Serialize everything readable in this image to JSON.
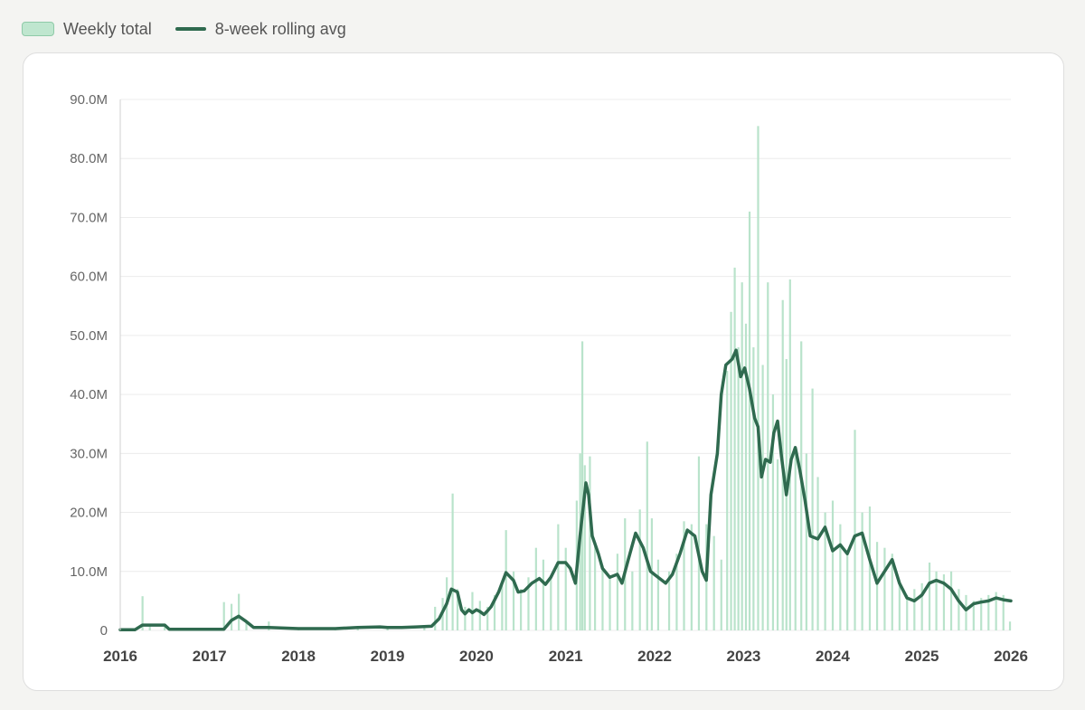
{
  "legend": {
    "bar_label": "Weekly total",
    "line_label": "8-week rolling avg"
  },
  "colors": {
    "bar": "#b9e3cb",
    "line": "#2f6a4f",
    "grid": "#ececec",
    "axis": "#d0d0d0"
  },
  "chart_data": {
    "type": "bar",
    "title": "",
    "xlabel": "",
    "ylabel": "",
    "ylim": [
      0,
      90000000
    ],
    "xlim": [
      "2016-01-01",
      "2026-01-01"
    ],
    "grid": true,
    "legend_position": "top-left",
    "y_ticks": [
      {
        "value": 0,
        "label": "0"
      },
      {
        "value": 10000000,
        "label": "10.0M"
      },
      {
        "value": 20000000,
        "label": "20.0M"
      },
      {
        "value": 30000000,
        "label": "30.0M"
      },
      {
        "value": 40000000,
        "label": "40.0M"
      },
      {
        "value": 50000000,
        "label": "50.0M"
      },
      {
        "value": 60000000,
        "label": "60.0M"
      },
      {
        "value": 70000000,
        "label": "70.0M"
      },
      {
        "value": 80000000,
        "label": "80.0M"
      },
      {
        "value": 90000000,
        "label": "90.0M"
      }
    ],
    "x_ticks": [
      {
        "date": "2016-01-01",
        "label": "2016"
      },
      {
        "date": "2017-01-01",
        "label": "2017"
      },
      {
        "date": "2018-01-01",
        "label": "2018"
      },
      {
        "date": "2019-01-01",
        "label": "2019"
      },
      {
        "date": "2020-01-01",
        "label": "2020"
      },
      {
        "date": "2021-01-01",
        "label": "2021"
      },
      {
        "date": "2022-01-01",
        "label": "2022"
      },
      {
        "date": "2023-01-01",
        "label": "2023"
      },
      {
        "date": "2024-01-01",
        "label": "2024"
      },
      {
        "date": "2025-01-01",
        "label": "2025"
      },
      {
        "date": "2026-01-01",
        "label": "2026"
      }
    ],
    "series": [
      {
        "name": "Weekly total",
        "type": "bar",
        "points": [
          [
            "2016-01-01",
            200000
          ],
          [
            "2016-03-01",
            300000
          ],
          [
            "2016-04-01",
            5800000
          ],
          [
            "2016-05-01",
            800000
          ],
          [
            "2016-07-01",
            600000
          ],
          [
            "2016-10-01",
            200000
          ],
          [
            "2017-01-01",
            200000
          ],
          [
            "2017-03-01",
            4800000
          ],
          [
            "2017-04-01",
            4500000
          ],
          [
            "2017-05-01",
            6200000
          ],
          [
            "2017-06-01",
            1500000
          ],
          [
            "2017-09-01",
            1500000
          ],
          [
            "2018-01-01",
            300000
          ],
          [
            "2018-06-01",
            400000
          ],
          [
            "2018-09-01",
            600000
          ],
          [
            "2019-01-01",
            500000
          ],
          [
            "2019-06-01",
            800000
          ],
          [
            "2019-07-15",
            4000000
          ],
          [
            "2019-08-15",
            5500000
          ],
          [
            "2019-09-01",
            9000000
          ],
          [
            "2019-09-25",
            23200000
          ],
          [
            "2019-10-15",
            7000000
          ],
          [
            "2019-11-15",
            4000000
          ],
          [
            "2019-12-15",
            6500000
          ],
          [
            "2020-01-15",
            5000000
          ],
          [
            "2020-02-15",
            4000000
          ],
          [
            "2020-03-15",
            6000000
          ],
          [
            "2020-04-15",
            8000000
          ],
          [
            "2020-05-01",
            17000000
          ],
          [
            "2020-06-01",
            10000000
          ],
          [
            "2020-07-01",
            7000000
          ],
          [
            "2020-08-01",
            9000000
          ],
          [
            "2020-09-01",
            14000000
          ],
          [
            "2020-10-01",
            12000000
          ],
          [
            "2020-11-01",
            9000000
          ],
          [
            "2020-12-01",
            18000000
          ],
          [
            "2021-01-01",
            14000000
          ],
          [
            "2021-02-15",
            22000000
          ],
          [
            "2021-03-01",
            30000000
          ],
          [
            "2021-03-10",
            49000000
          ],
          [
            "2021-03-20",
            28000000
          ],
          [
            "2021-04-10",
            29500000
          ],
          [
            "2021-05-01",
            15000000
          ],
          [
            "2021-06-01",
            11000000
          ],
          [
            "2021-07-01",
            9000000
          ],
          [
            "2021-08-01",
            13000000
          ],
          [
            "2021-09-01",
            19000000
          ],
          [
            "2021-10-01",
            10000000
          ],
          [
            "2021-11-01",
            20500000
          ],
          [
            "2021-12-01",
            32000000
          ],
          [
            "2021-12-20",
            19000000
          ],
          [
            "2022-01-15",
            12000000
          ],
          [
            "2022-03-01",
            10000000
          ],
          [
            "2022-04-01",
            13000000
          ],
          [
            "2022-05-01",
            18500000
          ],
          [
            "2022-06-01",
            18000000
          ],
          [
            "2022-07-01",
            29500000
          ],
          [
            "2022-08-01",
            18000000
          ],
          [
            "2022-09-01",
            16000000
          ],
          [
            "2022-10-01",
            12000000
          ],
          [
            "2022-10-25",
            44000000
          ],
          [
            "2022-11-10",
            54000000
          ],
          [
            "2022-11-25",
            61500000
          ],
          [
            "2022-12-10",
            48000000
          ],
          [
            "2022-12-25",
            59000000
          ],
          [
            "2023-01-10",
            52000000
          ],
          [
            "2023-01-25",
            71000000
          ],
          [
            "2023-02-10",
            48000000
          ],
          [
            "2023-03-01",
            85500000
          ],
          [
            "2023-03-20",
            45000000
          ],
          [
            "2023-04-10",
            59000000
          ],
          [
            "2023-05-01",
            40000000
          ],
          [
            "2023-05-20",
            29000000
          ],
          [
            "2023-06-10",
            56000000
          ],
          [
            "2023-06-25",
            46000000
          ],
          [
            "2023-07-10",
            59500000
          ],
          [
            "2023-08-01",
            30000000
          ],
          [
            "2023-08-25",
            49000000
          ],
          [
            "2023-09-15",
            30000000
          ],
          [
            "2023-10-10",
            41000000
          ],
          [
            "2023-11-01",
            26000000
          ],
          [
            "2023-12-01",
            20000000
          ],
          [
            "2024-01-01",
            22000000
          ],
          [
            "2024-02-01",
            18000000
          ],
          [
            "2024-03-01",
            13000000
          ],
          [
            "2024-04-01",
            34000000
          ],
          [
            "2024-05-01",
            20000000
          ],
          [
            "2024-06-01",
            21000000
          ],
          [
            "2024-07-01",
            15000000
          ],
          [
            "2024-08-01",
            14000000
          ],
          [
            "2024-09-01",
            13000000
          ],
          [
            "2024-10-01",
            8000000
          ],
          [
            "2024-11-01",
            6000000
          ],
          [
            "2024-12-01",
            7000000
          ],
          [
            "2025-01-01",
            8000000
          ],
          [
            "2025-02-01",
            11500000
          ],
          [
            "2025-03-01",
            10000000
          ],
          [
            "2025-04-01",
            9500000
          ],
          [
            "2025-05-01",
            10000000
          ],
          [
            "2025-06-01",
            7000000
          ],
          [
            "2025-07-01",
            6000000
          ],
          [
            "2025-08-01",
            5000000
          ],
          [
            "2025-09-01",
            5500000
          ],
          [
            "2025-10-01",
            6000000
          ],
          [
            "2025-11-01",
            6500000
          ],
          [
            "2025-12-01",
            6000000
          ],
          [
            "2025-12-28",
            1500000
          ]
        ]
      },
      {
        "name": "8-week rolling avg",
        "type": "line",
        "points": [
          [
            "2016-01-01",
            100000
          ],
          [
            "2016-03-01",
            100000
          ],
          [
            "2016-04-01",
            900000
          ],
          [
            "2016-07-01",
            900000
          ],
          [
            "2016-07-20",
            200000
          ],
          [
            "2017-03-01",
            200000
          ],
          [
            "2017-04-01",
            1700000
          ],
          [
            "2017-05-01",
            2400000
          ],
          [
            "2017-06-01",
            1500000
          ],
          [
            "2017-07-01",
            500000
          ],
          [
            "2017-09-01",
            500000
          ],
          [
            "2018-01-01",
            300000
          ],
          [
            "2018-06-01",
            300000
          ],
          [
            "2018-09-01",
            500000
          ],
          [
            "2018-12-01",
            600000
          ],
          [
            "2019-01-01",
            500000
          ],
          [
            "2019-03-01",
            500000
          ],
          [
            "2019-05-01",
            600000
          ],
          [
            "2019-07-01",
            700000
          ],
          [
            "2019-08-01",
            2000000
          ],
          [
            "2019-09-01",
            4500000
          ],
          [
            "2019-09-20",
            7000000
          ],
          [
            "2019-10-15",
            6500000
          ],
          [
            "2019-11-01",
            3500000
          ],
          [
            "2019-11-15",
            2800000
          ],
          [
            "2019-12-01",
            3500000
          ],
          [
            "2019-12-15",
            3000000
          ],
          [
            "2020-01-01",
            3500000
          ],
          [
            "2020-01-15",
            3200000
          ],
          [
            "2020-02-01",
            2700000
          ],
          [
            "2020-02-15",
            3300000
          ],
          [
            "2020-03-01",
            4000000
          ],
          [
            "2020-04-01",
            6500000
          ],
          [
            "2020-05-01",
            9800000
          ],
          [
            "2020-06-01",
            8500000
          ],
          [
            "2020-06-20",
            6500000
          ],
          [
            "2020-07-15",
            6700000
          ],
          [
            "2020-08-15",
            8000000
          ],
          [
            "2020-09-15",
            8800000
          ],
          [
            "2020-10-10",
            7800000
          ],
          [
            "2020-11-01",
            9000000
          ],
          [
            "2020-12-01",
            11500000
          ],
          [
            "2021-01-01",
            11500000
          ],
          [
            "2021-01-20",
            10500000
          ],
          [
            "2021-02-10",
            8000000
          ],
          [
            "2021-03-01",
            16000000
          ],
          [
            "2021-03-25",
            25000000
          ],
          [
            "2021-04-05",
            23000000
          ],
          [
            "2021-04-20",
            16000000
          ],
          [
            "2021-05-15",
            13000000
          ],
          [
            "2021-06-01",
            10500000
          ],
          [
            "2021-07-01",
            9000000
          ],
          [
            "2021-08-01",
            9500000
          ],
          [
            "2021-08-20",
            8000000
          ],
          [
            "2021-09-15",
            12000000
          ],
          [
            "2021-10-15",
            16500000
          ],
          [
            "2021-11-15",
            14000000
          ],
          [
            "2021-12-15",
            10000000
          ],
          [
            "2022-01-15",
            9000000
          ],
          [
            "2022-02-15",
            8000000
          ],
          [
            "2022-03-15",
            9500000
          ],
          [
            "2022-04-15",
            13000000
          ],
          [
            "2022-05-15",
            17000000
          ],
          [
            "2022-06-15",
            16000000
          ],
          [
            "2022-07-15",
            10000000
          ],
          [
            "2022-08-01",
            8500000
          ],
          [
            "2022-08-20",
            23000000
          ],
          [
            "2022-09-15",
            30000000
          ],
          [
            "2022-10-01",
            40000000
          ],
          [
            "2022-10-20",
            45000000
          ],
          [
            "2022-11-15",
            46000000
          ],
          [
            "2022-12-01",
            47500000
          ],
          [
            "2022-12-20",
            43000000
          ],
          [
            "2023-01-05",
            44500000
          ],
          [
            "2023-01-25",
            41000000
          ],
          [
            "2023-02-15",
            36000000
          ],
          [
            "2023-03-01",
            34500000
          ],
          [
            "2023-03-15",
            26000000
          ],
          [
            "2023-04-01",
            29000000
          ],
          [
            "2023-04-20",
            28500000
          ],
          [
            "2023-05-05",
            33500000
          ],
          [
            "2023-05-20",
            35500000
          ],
          [
            "2023-06-05",
            29500000
          ],
          [
            "2023-06-25",
            23000000
          ],
          [
            "2023-07-15",
            29000000
          ],
          [
            "2023-08-01",
            31000000
          ],
          [
            "2023-08-20",
            27000000
          ],
          [
            "2023-09-10",
            22000000
          ],
          [
            "2023-10-01",
            16000000
          ],
          [
            "2023-11-01",
            15500000
          ],
          [
            "2023-12-01",
            17500000
          ],
          [
            "2024-01-01",
            13500000
          ],
          [
            "2024-02-01",
            14500000
          ],
          [
            "2024-03-01",
            13000000
          ],
          [
            "2024-04-01",
            16000000
          ],
          [
            "2024-05-01",
            16500000
          ],
          [
            "2024-06-01",
            12000000
          ],
          [
            "2024-07-01",
            8000000
          ],
          [
            "2024-08-01",
            10000000
          ],
          [
            "2024-09-01",
            12000000
          ],
          [
            "2024-10-01",
            8000000
          ],
          [
            "2024-11-01",
            5500000
          ],
          [
            "2024-12-01",
            5000000
          ],
          [
            "2025-01-01",
            6000000
          ],
          [
            "2025-02-01",
            8000000
          ],
          [
            "2025-03-01",
            8500000
          ],
          [
            "2025-04-01",
            8000000
          ],
          [
            "2025-05-01",
            7000000
          ],
          [
            "2025-06-01",
            5000000
          ],
          [
            "2025-07-01",
            3500000
          ],
          [
            "2025-08-01",
            4500000
          ],
          [
            "2025-09-01",
            4800000
          ],
          [
            "2025-10-01",
            5000000
          ],
          [
            "2025-11-01",
            5500000
          ],
          [
            "2025-12-01",
            5200000
          ],
          [
            "2026-01-01",
            5000000
          ]
        ]
      }
    ]
  }
}
